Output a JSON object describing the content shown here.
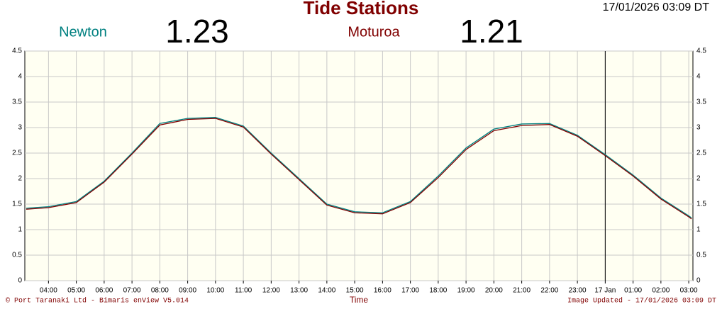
{
  "chart_data": {
    "type": "line",
    "title": "Tide Stations",
    "timestamp": "17/01/2026 03:09 DT",
    "x_label": "Time",
    "footer_left": "© Port Taranaki Ltd - Bimaris enView V5.014",
    "footer_right": "Image Updated - 17/01/2026 03:09 DT",
    "x": [
      3.2,
      4,
      5,
      6,
      7,
      8,
      9,
      10,
      11,
      12,
      13,
      14,
      15,
      16,
      17,
      18,
      19,
      20,
      21,
      22,
      23,
      24,
      25,
      26,
      27,
      27.1
    ],
    "series": [
      {
        "name": "Newton",
        "color": "#008080",
        "current": 1.23,
        "values": [
          1.42,
          1.45,
          1.55,
          1.95,
          2.5,
          3.08,
          3.18,
          3.2,
          3.03,
          2.5,
          2.0,
          1.5,
          1.35,
          1.33,
          1.55,
          2.05,
          2.6,
          2.97,
          3.07,
          3.08,
          2.85,
          2.47,
          2.07,
          1.62,
          1.27,
          1.23
        ]
      },
      {
        "name": "Moturoa",
        "color": "#800000",
        "current": 1.21,
        "values": [
          1.4,
          1.43,
          1.53,
          1.93,
          2.48,
          3.05,
          3.16,
          3.18,
          3.01,
          2.48,
          1.98,
          1.48,
          1.33,
          1.31,
          1.53,
          2.02,
          2.57,
          2.94,
          3.04,
          3.06,
          2.83,
          2.45,
          2.05,
          1.6,
          1.25,
          1.21
        ]
      }
    ],
    "xlim": [
      3.15,
      27.15
    ],
    "xticks": [
      {
        "value": 4,
        "label": "04:00"
      },
      {
        "value": 5,
        "label": "05:00"
      },
      {
        "value": 6,
        "label": "06:00"
      },
      {
        "value": 7,
        "label": "07:00"
      },
      {
        "value": 8,
        "label": "08:00"
      },
      {
        "value": 9,
        "label": "09:00"
      },
      {
        "value": 10,
        "label": "10:00"
      },
      {
        "value": 11,
        "label": "11:00"
      },
      {
        "value": 12,
        "label": "12:00"
      },
      {
        "value": 13,
        "label": "13:00"
      },
      {
        "value": 14,
        "label": "14:00"
      },
      {
        "value": 15,
        "label": "15:00"
      },
      {
        "value": 16,
        "label": "16:00"
      },
      {
        "value": 17,
        "label": "17:00"
      },
      {
        "value": 18,
        "label": "18:00"
      },
      {
        "value": 19,
        "label": "19:00"
      },
      {
        "value": 20,
        "label": "20:00"
      },
      {
        "value": 21,
        "label": "21:00"
      },
      {
        "value": 22,
        "label": "22:00"
      },
      {
        "value": 23,
        "label": "23:00"
      },
      {
        "value": 24,
        "label": "17 Jan"
      },
      {
        "value": 25,
        "label": "01:00"
      },
      {
        "value": 26,
        "label": "02:00"
      },
      {
        "value": 27,
        "label": "03:00"
      }
    ],
    "ylim": [
      0,
      4.5
    ],
    "yticks": [
      0,
      0.5,
      1,
      1.5,
      2,
      2.5,
      3,
      3.5,
      4,
      4.5
    ],
    "day_line": 24,
    "grid": true
  }
}
